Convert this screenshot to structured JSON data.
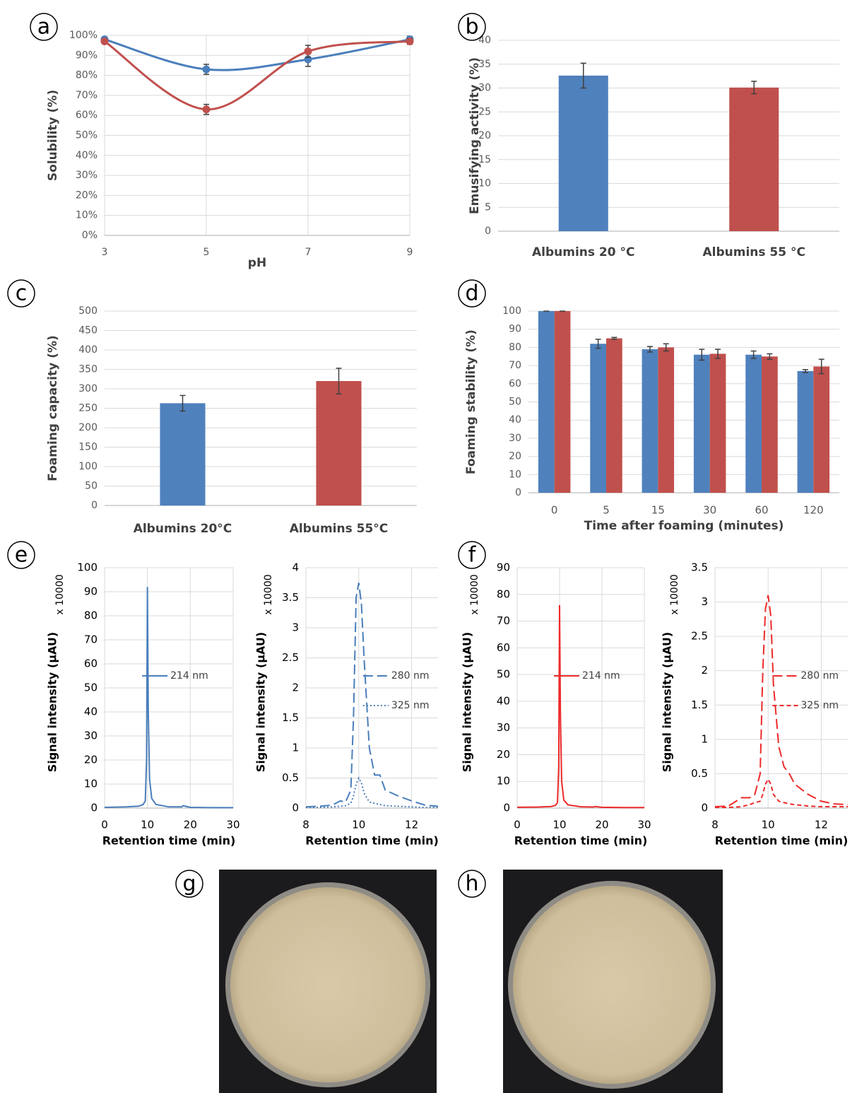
{
  "chart_data": [
    {
      "type": "line",
      "label": "a",
      "x_label": "pH",
      "y_label": "Solubility (%)",
      "smooth": true,
      "grid": true,
      "xlim": [
        3,
        9
      ],
      "xticks": [
        3,
        5,
        7,
        9
      ],
      "ylim": [
        0,
        100
      ],
      "yticks": [
        {
          "value": 0,
          "label": "0%"
        },
        {
          "value": 10,
          "label": "10%"
        },
        {
          "value": 20,
          "label": "20%"
        },
        {
          "value": 30,
          "label": "30%"
        },
        {
          "value": 40,
          "label": "40%"
        },
        {
          "value": 50,
          "label": "50%"
        },
        {
          "value": 60,
          "label": "60%"
        },
        {
          "value": 70,
          "label": "70%"
        },
        {
          "value": 80,
          "label": "80%"
        },
        {
          "value": 90,
          "label": "90%"
        },
        {
          "value": 100,
          "label": "100%"
        }
      ],
      "x": [
        3,
        5,
        7,
        9
      ],
      "series": [
        {
          "color": "#4a7ebb",
          "values": [
            98,
            83,
            88,
            98
          ],
          "errors": [
            1,
            2.5,
            3.5,
            1.5
          ]
        },
        {
          "color": "#c0504d",
          "values": [
            97,
            63,
            92,
            97
          ],
          "errors": [
            1,
            2.5,
            3,
            1.5
          ]
        }
      ]
    },
    {
      "type": "bar",
      "label": "b",
      "y_label": "Emusifying activity (%)",
      "grid": true,
      "ylim": [
        0,
        40
      ],
      "yticks": [
        0,
        5,
        10,
        15,
        20,
        25,
        30,
        35,
        40
      ],
      "categories": [
        "Albumins 20 °C",
        "Albumins 55 °C"
      ],
      "values": [
        32.6,
        30.1
      ],
      "errors": [
        2.6,
        1.3
      ],
      "colors": [
        "#4f81bd",
        "#c0504d"
      ]
    },
    {
      "type": "bar",
      "label": "c",
      "y_label": "Foaming capacity (%)",
      "grid": true,
      "ylim": [
        0,
        500
      ],
      "yticks": [
        0,
        50,
        100,
        150,
        200,
        250,
        300,
        350,
        400,
        450,
        500
      ],
      "categories": [
        "Albumins 20°C",
        "Albumins 55°C"
      ],
      "values": [
        263,
        320
      ],
      "errors": [
        20,
        33
      ],
      "colors": [
        "#4f81bd",
        "#c0504d"
      ]
    },
    {
      "type": "bar",
      "label": "d",
      "x_label": "Time after foaming (minutes)",
      "y_label": "Foaming stability (%)",
      "grid": true,
      "ylim": [
        0,
        100
      ],
      "yticks": [
        0,
        10,
        20,
        30,
        40,
        50,
        60,
        70,
        80,
        90,
        100
      ],
      "categories": [
        "0",
        "5",
        "15",
        "30",
        "60",
        "120"
      ],
      "series": [
        {
          "color": "#4f81bd",
          "values": [
            100,
            82,
            79,
            76,
            76,
            67
          ],
          "errors": [
            0,
            2.5,
            1.5,
            3,
            2,
            0.8
          ]
        },
        {
          "color": "#c0504d",
          "values": [
            100,
            85,
            80,
            76.5,
            75,
            69.5
          ],
          "errors": [
            0,
            0.5,
            2,
            2.5,
            1.5,
            4
          ]
        }
      ]
    },
    {
      "type": "line",
      "label": "e",
      "x_label": "Retention time (min)",
      "y_label": "Signal intensity (µAU)",
      "y_unit": "x 10000",
      "grid": true,
      "legend": "right",
      "xlim": [
        0,
        30
      ],
      "xticks": [
        0,
        10,
        20,
        30
      ],
      "ylim": [
        0,
        100
      ],
      "yticks": [
        0,
        10,
        20,
        30,
        40,
        50,
        60,
        70,
        80,
        90,
        100
      ],
      "x": [
        0,
        5,
        8,
        9,
        9.5,
        9.8,
        10,
        10.2,
        10.5,
        11,
        12,
        15,
        18,
        18.3,
        20,
        25,
        30
      ],
      "series": [
        {
          "name": "214 nm",
          "color": "#4a7ebb",
          "style": "solid",
          "values": [
            0.3,
            0.5,
            0.8,
            1.5,
            3,
            20,
            92,
            40,
            12,
            4,
            1.5,
            0.5,
            0.5,
            1,
            0.3,
            0.2,
            0.2
          ]
        }
      ]
    },
    {
      "type": "line",
      "x_label": "Retention time (min)",
      "y_label": "Signal intensity (µAU)",
      "y_unit": "x 10000",
      "grid": true,
      "legend": "right",
      "xlim": [
        8,
        13
      ],
      "xticks": [
        8,
        10,
        12
      ],
      "ylim": [
        0,
        4
      ],
      "yticks": [
        0,
        0.5,
        1,
        1.5,
        2,
        2.5,
        3,
        3.5,
        4
      ],
      "x": [
        8,
        8.5,
        9,
        9.3,
        9.5,
        9.7,
        9.8,
        9.9,
        10,
        10.1,
        10.2,
        10.4,
        10.6,
        10.8,
        11,
        11.5,
        12,
        12.5,
        13
      ],
      "series": [
        {
          "name": "280 nm",
          "color": "#4a7ebb",
          "style": "dashed",
          "values": [
            0.02,
            0.03,
            0.05,
            0.12,
            0.1,
            0.3,
            1.5,
            3.5,
            3.75,
            3.4,
            2.5,
            1.0,
            0.55,
            0.55,
            0.3,
            0.2,
            0.12,
            0.05,
            0.03
          ]
        },
        {
          "name": "325 nm",
          "color": "#4a7ebb",
          "style": "dotted",
          "values": [
            0.01,
            0.01,
            0.02,
            0.03,
            0.04,
            0.08,
            0.2,
            0.4,
            0.5,
            0.42,
            0.25,
            0.1,
            0.08,
            0.06,
            0.04,
            0.03,
            0.02,
            0.01,
            0.01
          ]
        }
      ]
    },
    {
      "type": "line",
      "label": "f",
      "x_label": "Retention time (min)",
      "y_label": "Signal intensity (µAU)",
      "y_unit": "x 10000",
      "grid": true,
      "legend": "right",
      "xlim": [
        0,
        30
      ],
      "xticks": [
        0,
        10,
        20,
        30
      ],
      "ylim": [
        0,
        90
      ],
      "yticks": [
        0,
        10,
        20,
        30,
        40,
        50,
        60,
        70,
        80,
        90
      ],
      "x": [
        0,
        5,
        8,
        9,
        9.5,
        9.8,
        10,
        10.2,
        10.5,
        11,
        12,
        15,
        18,
        18.3,
        20,
        25,
        30
      ],
      "series": [
        {
          "name": "214 nm",
          "color": "#ee2a2a",
          "style": "solid",
          "values": [
            0.3,
            0.4,
            0.6,
            1,
            2,
            15,
            76,
            35,
            10,
            3,
            1.2,
            0.5,
            0.4,
            0.6,
            0.3,
            0.2,
            0.2
          ]
        }
      ]
    },
    {
      "type": "line",
      "x_label": "Retention time (min)",
      "y_label": "Signal intensity (µAU)",
      "y_unit": "x 10000",
      "grid": true,
      "legend": "right",
      "xlim": [
        8,
        13
      ],
      "xticks": [
        8,
        10,
        12
      ],
      "ylim": [
        0,
        3.5
      ],
      "yticks": [
        0,
        0.5,
        1,
        1.5,
        2,
        2.5,
        3,
        3.5
      ],
      "x": [
        8,
        8.5,
        9,
        9.3,
        9.5,
        9.7,
        9.8,
        9.9,
        10,
        10.1,
        10.2,
        10.4,
        10.6,
        10.8,
        11,
        11.5,
        12,
        12.5,
        13
      ],
      "series": [
        {
          "name": "280 nm",
          "color": "#ee2a2a",
          "style": "dashed",
          "values": [
            0.02,
            0.03,
            0.15,
            0.15,
            0.2,
            0.5,
            2,
            2.9,
            3.1,
            2.8,
            1.8,
            0.9,
            0.6,
            0.5,
            0.35,
            0.2,
            0.1,
            0.06,
            0.05
          ]
        },
        {
          "name": "325 nm",
          "color": "#ee2a2a",
          "style": "short-dashed",
          "values": [
            0.01,
            0.01,
            0.02,
            0.05,
            0.08,
            0.1,
            0.2,
            0.35,
            0.42,
            0.35,
            0.2,
            0.1,
            0.08,
            0.06,
            0.05,
            0.03,
            0.02,
            0.02,
            0.02
          ]
        }
      ]
    }
  ],
  "photos": [
    {
      "label": "g"
    },
    {
      "label": "h"
    }
  ]
}
